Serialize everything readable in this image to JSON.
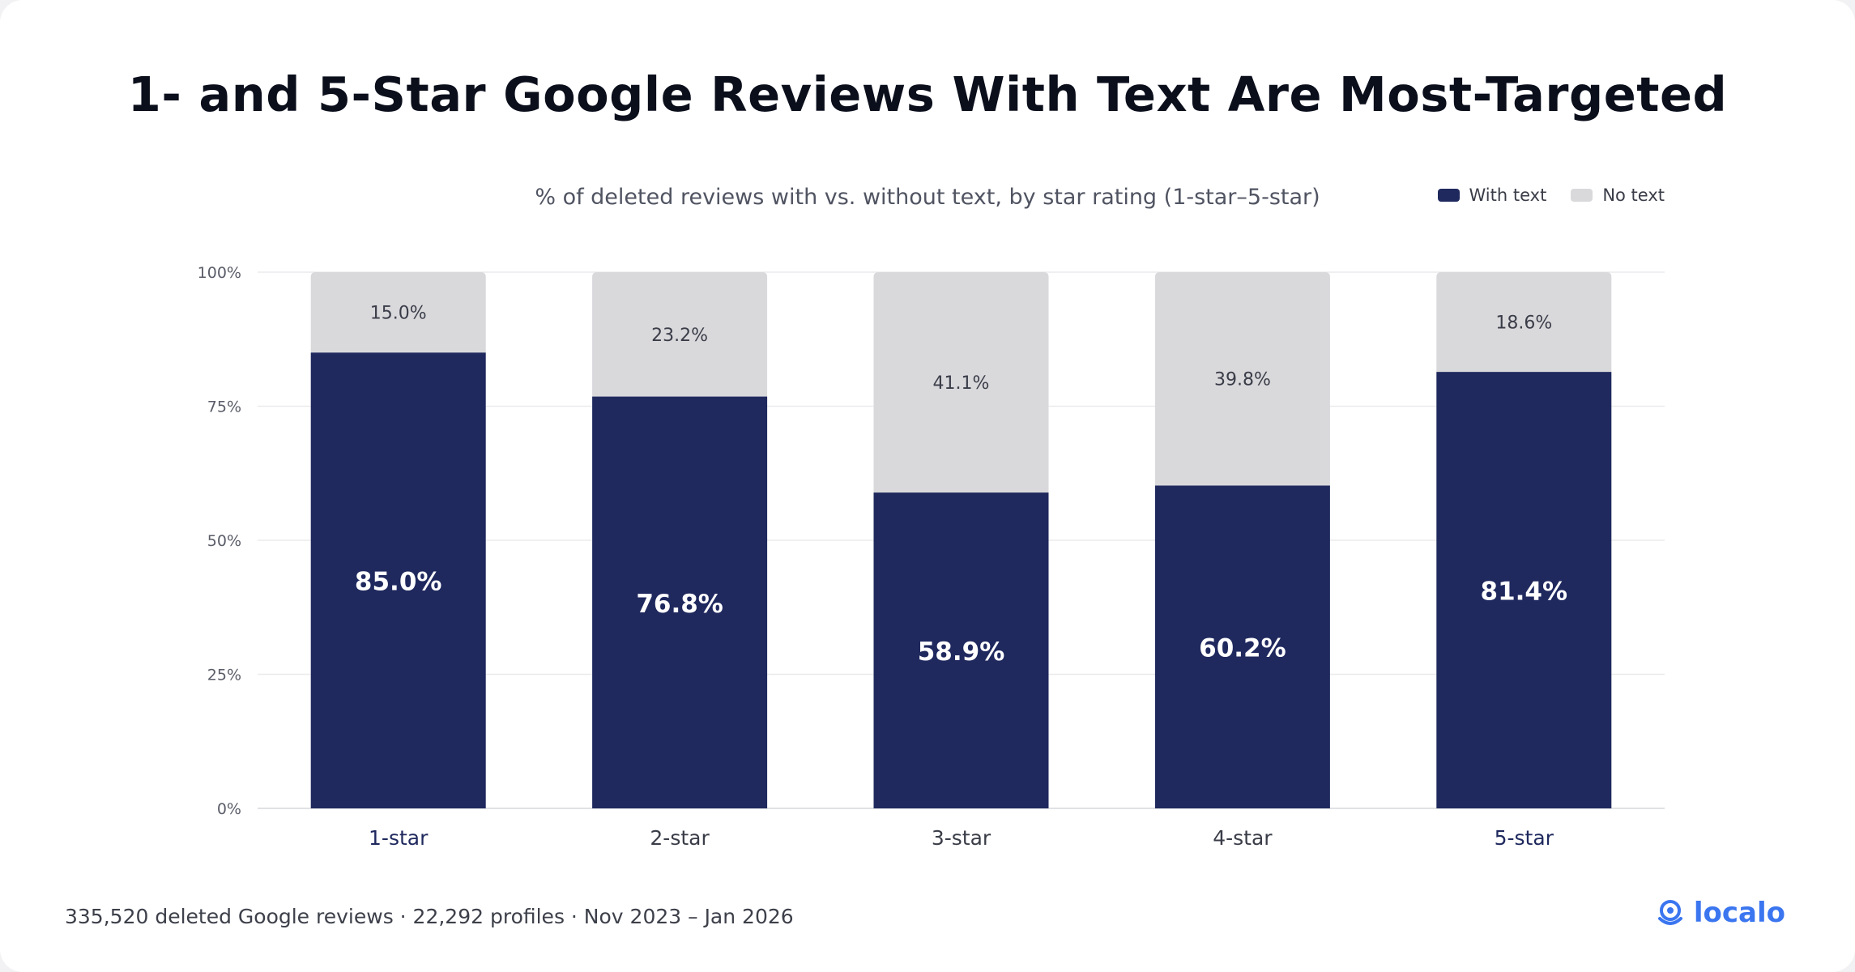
{
  "title": "1- and 5-Star Google Reviews With Text Are Most-Targeted",
  "subtitle": "% of deleted reviews with vs. without text, by star rating (1-star–5-star)",
  "legend": {
    "items": [
      {
        "label": "With text",
        "color": "#1f295e"
      },
      {
        "label": "No text",
        "color": "#d9d9dc"
      }
    ]
  },
  "footer": "335,520 deleted Google reviews · 22,292 profiles · Nov 2023 – Jan 2026",
  "brand": {
    "name": "localo",
    "icon": "location-pin-icon",
    "color": "#3b76f0"
  },
  "colors": {
    "with_text": "#1f295e",
    "no_text": "#d9d9dc",
    "highlight_tick": "#1f295e",
    "tick": "#3a3d48"
  },
  "chart_data": {
    "type": "bar",
    "stacked": true,
    "categories": [
      "1-star",
      "2-star",
      "3-star",
      "4-star",
      "5-star"
    ],
    "highlighted_categories": [
      "1-star",
      "5-star"
    ],
    "series": [
      {
        "name": "With text",
        "values": [
          85.0,
          76.8,
          58.9,
          60.2,
          81.4
        ],
        "labels": [
          "85.0%",
          "76.8%",
          "58.9%",
          "60.2%",
          "81.4%"
        ]
      },
      {
        "name": "No text",
        "values": [
          15.0,
          23.2,
          41.1,
          39.8,
          18.6
        ],
        "labels": [
          "15.0%",
          "23.2%",
          "41.1%",
          "39.8%",
          "18.6%"
        ]
      }
    ],
    "ylim": [
      0,
      100
    ],
    "yticks": [
      0,
      25,
      50,
      75,
      100
    ],
    "ytick_labels": [
      "0%",
      "25%",
      "50%",
      "75%",
      "100%"
    ],
    "grid": true,
    "legend_position": "top-right",
    "xlabel": "",
    "ylabel": ""
  }
}
